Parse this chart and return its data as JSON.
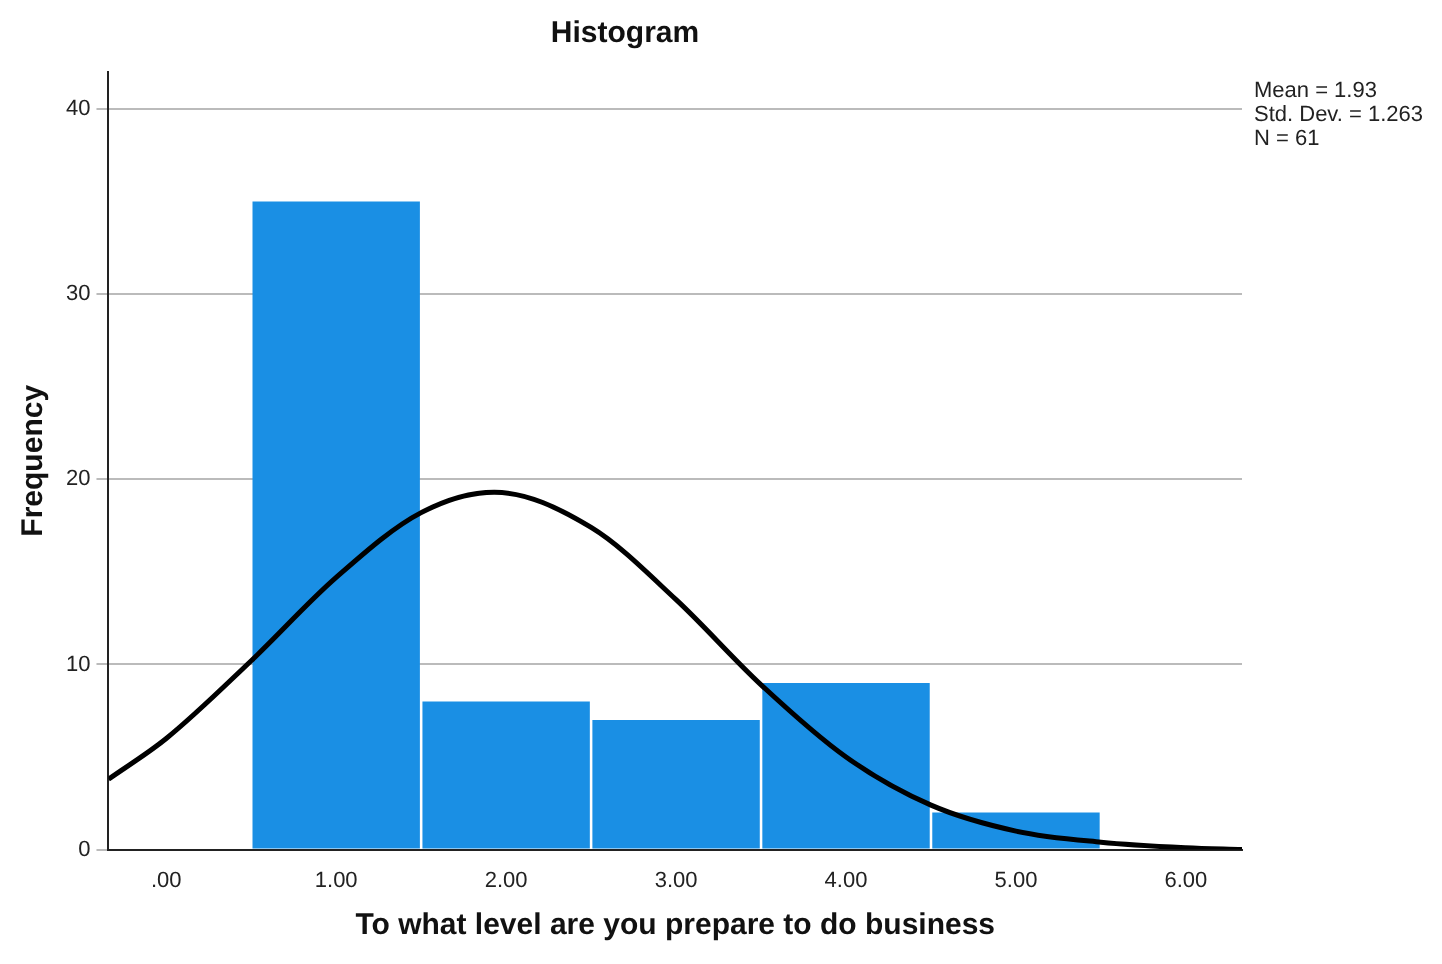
{
  "chart_data": {
    "type": "histogram",
    "title": "Histogram",
    "xlabel": "To what level are you prepare to do business",
    "ylabel": "Frequency",
    "bins": [
      0.5,
      1.5,
      2.5,
      3.5,
      4.5,
      5.5
    ],
    "values": [
      35,
      8,
      7,
      9,
      2
    ],
    "color": "#1a8fe4",
    "series": [
      {
        "type": "line",
        "color": "#000000",
        "x": [
          -0.34,
          0,
          0.5,
          1,
          1.5,
          1.93,
          2.5,
          3,
          3.5,
          4,
          4.5,
          5,
          5.5,
          6,
          6.33
        ],
        "values": [
          3.8,
          6,
          10.2,
          14.7,
          18.2,
          19.3,
          17.4,
          13.5,
          8.9,
          5,
          2.4,
          1,
          0.4,
          0.1,
          0
        ]
      }
    ],
    "xlim": [
      -0.34,
      6.33
    ],
    "xticks": [
      {
        "value": 0,
        "label": ".00"
      },
      {
        "value": 1,
        "label": "1.00"
      },
      {
        "value": 2,
        "label": "2.00"
      },
      {
        "value": 3,
        "label": "3.00"
      },
      {
        "value": 4,
        "label": "4.00"
      },
      {
        "value": 5,
        "label": "5.00"
      },
      {
        "value": 6,
        "label": "6.00"
      }
    ],
    "ylim": [
      0,
      42
    ],
    "yticks": [
      0,
      10,
      20,
      30,
      40
    ],
    "grid": "y",
    "legend": false,
    "annotations": [
      "Mean = 1.93",
      "Std. Dev. = 1.263",
      "N = 61"
    ]
  }
}
